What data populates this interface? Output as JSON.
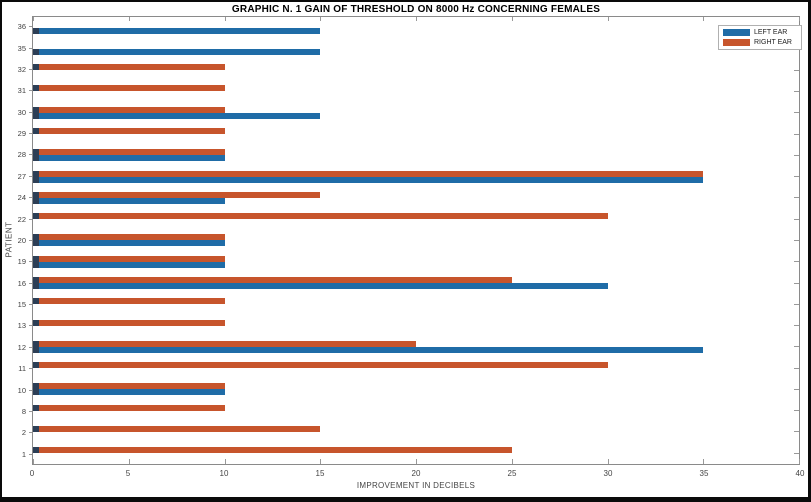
{
  "figure": {
    "background": "#ffffff",
    "frame_color": "#0a0a0a",
    "axis_box_color": "#8a8a8a",
    "tick_color": "#999999"
  },
  "chart_data": {
    "type": "bar",
    "orientation": "horizontal",
    "title": "GRAPHIC N. 1 GAIN OF THRESHOLD ON 8000 Hz CONCERNING FEMALES",
    "xlabel": "IMPROVEMENT IN DECIBELS",
    "ylabel": "PATIENT",
    "xlim": [
      0,
      40
    ],
    "xticks": [
      0,
      5,
      10,
      15,
      20,
      25,
      30,
      35,
      40
    ],
    "grid": false,
    "legend_position": "top-right",
    "categories": [
      "36",
      "35",
      "32",
      "31",
      "30",
      "29",
      "28",
      "27",
      "24",
      "22",
      "20",
      "19",
      "16",
      "15",
      "13",
      "12",
      "11",
      "10",
      "8",
      "2",
      "1"
    ],
    "series": [
      {
        "name": "LEFT EAR",
        "color": "#1F6CA7",
        "values": [
          15,
          15,
          0,
          0,
          15,
          0,
          10,
          35,
          10,
          0,
          10,
          10,
          30,
          0,
          0,
          35,
          0,
          10,
          0,
          0,
          0
        ]
      },
      {
        "name": "RIGHT EAR",
        "color": "#C7552C",
        "values": [
          0,
          0,
          10,
          10,
          10,
          10,
          10,
          35,
          15,
          30,
          10,
          10,
          25,
          10,
          10,
          20,
          30,
          10,
          10,
          15,
          25
        ]
      }
    ],
    "bar_edge_cap_color": "#2C3E55"
  }
}
